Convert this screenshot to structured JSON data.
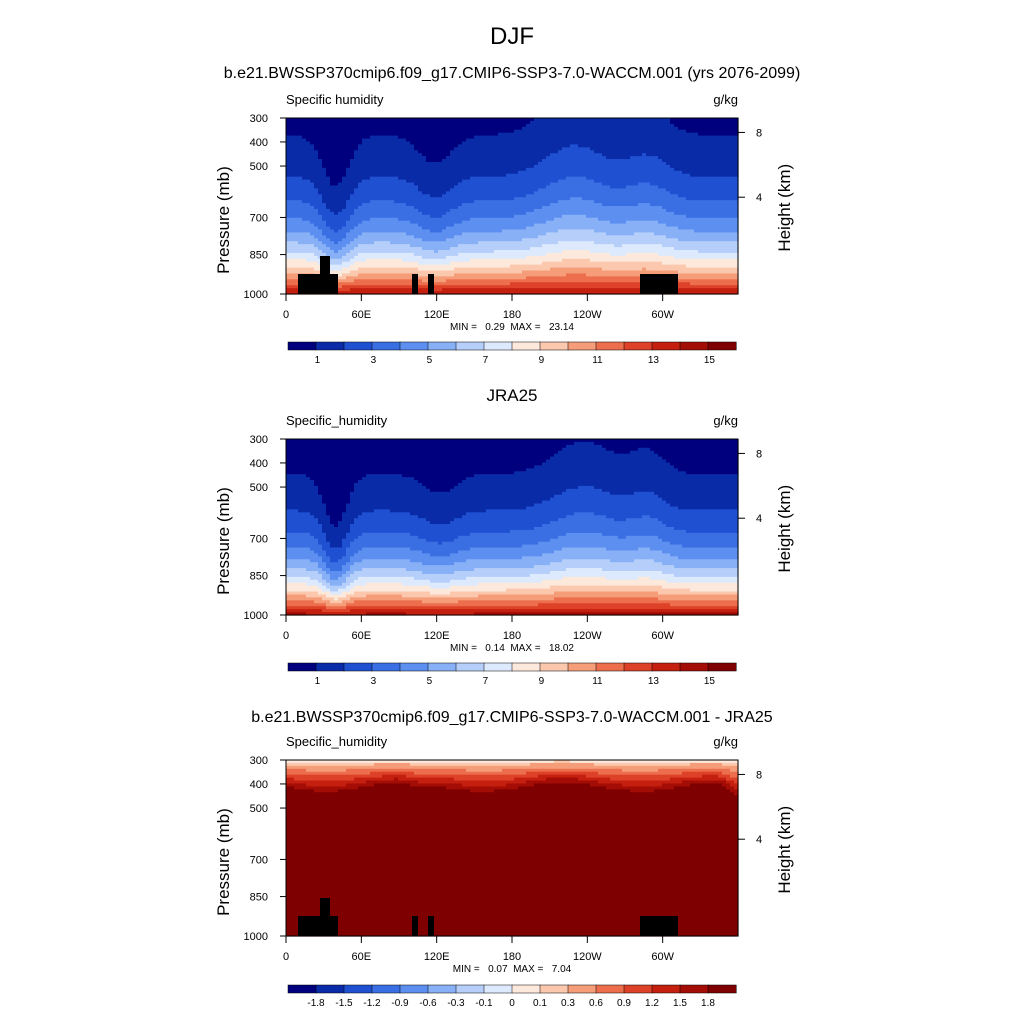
{
  "figure": {
    "title": "DJF"
  },
  "colormaps": {
    "blue_white_red_16": [
      "#00007f",
      "#0a2ba8",
      "#1f50d2",
      "#3a6fe3",
      "#5c8ff0",
      "#88b0f6",
      "#b5cffa",
      "#ddeafd",
      "#fde8dc",
      "#fbc7ad",
      "#f59c78",
      "#ec6e4c",
      "#dd4128",
      "#c51f10",
      "#a40d05",
      "#7f0000"
    ]
  },
  "chart_data": [
    {
      "type": "contour",
      "panel_title": "b.e21.BWSSP370cmip6.f09_g17.CMIP6-SSP3-7.0-WACCM.001 (yrs 2076-2099)",
      "variable_label": "Specific humidity",
      "units": "g/kg",
      "ylabel": "Pressure (mb)",
      "ylabel_right": "Height (km)",
      "yticks": [
        "300",
        "400",
        "500",
        "700",
        "850",
        "1000"
      ],
      "yticks_right": [
        "8",
        "4"
      ],
      "xticks": [
        "0",
        "60E",
        "120E",
        "180",
        "120W",
        "60W"
      ],
      "stats": "MIN =   0.29  MAX =   23.14",
      "colorbar_labels": [
        "1",
        "3",
        "5",
        "7",
        "9",
        "11",
        "13",
        "15"
      ],
      "field_levels": [
        1,
        2,
        3,
        4,
        5,
        6,
        7,
        8,
        9,
        10,
        11,
        12,
        13,
        14,
        15
      ],
      "topography_mask": true
    },
    {
      "type": "contour",
      "panel_title": "JRA25",
      "variable_label": "Specific_humidity",
      "units": "g/kg",
      "ylabel": "Pressure (mb)",
      "ylabel_right": "Height (km)",
      "yticks": [
        "300",
        "400",
        "500",
        "700",
        "850",
        "1000"
      ],
      "yticks_right": [
        "8",
        "4"
      ],
      "xticks": [
        "0",
        "60E",
        "120E",
        "180",
        "120W",
        "60W"
      ],
      "stats": "MIN =   0.14  MAX =   18.02",
      "colorbar_labels": [
        "1",
        "3",
        "5",
        "7",
        "9",
        "11",
        "13",
        "15"
      ],
      "field_levels": [
        1,
        2,
        3,
        4,
        5,
        6,
        7,
        8,
        9,
        10,
        11,
        12,
        13,
        14,
        15
      ],
      "topography_mask": false
    },
    {
      "type": "contour",
      "panel_title": "b.e21.BWSSP370cmip6.f09_g17.CMIP6-SSP3-7.0-WACCM.001 - JRA25",
      "variable_label": "Specific_humidity",
      "units": "g/kg",
      "ylabel": "Pressure (mb)",
      "ylabel_right": "Height (km)",
      "yticks": [
        "300",
        "400",
        "500",
        "700",
        "850",
        "1000"
      ],
      "yticks_right": [
        "8",
        "4"
      ],
      "xticks": [
        "0",
        "60E",
        "120E",
        "180",
        "120W",
        "60W"
      ],
      "stats": "MIN =   0.07  MAX =   7.04",
      "colorbar_labels": [
        "-1.8",
        "-1.5",
        "-1.2",
        "-0.9",
        "-0.6",
        "-0.3",
        "-0.1",
        "0",
        "0.1",
        "0.3",
        "0.6",
        "0.9",
        "1.2",
        "1.5",
        "1.8"
      ],
      "field_levels": [
        -1.8,
        -1.5,
        -1.2,
        -0.9,
        -0.6,
        -0.3,
        -0.1,
        0,
        0.1,
        0.3,
        0.6,
        0.9,
        1.2,
        1.5,
        1.8
      ],
      "topography_mask": true
    }
  ]
}
